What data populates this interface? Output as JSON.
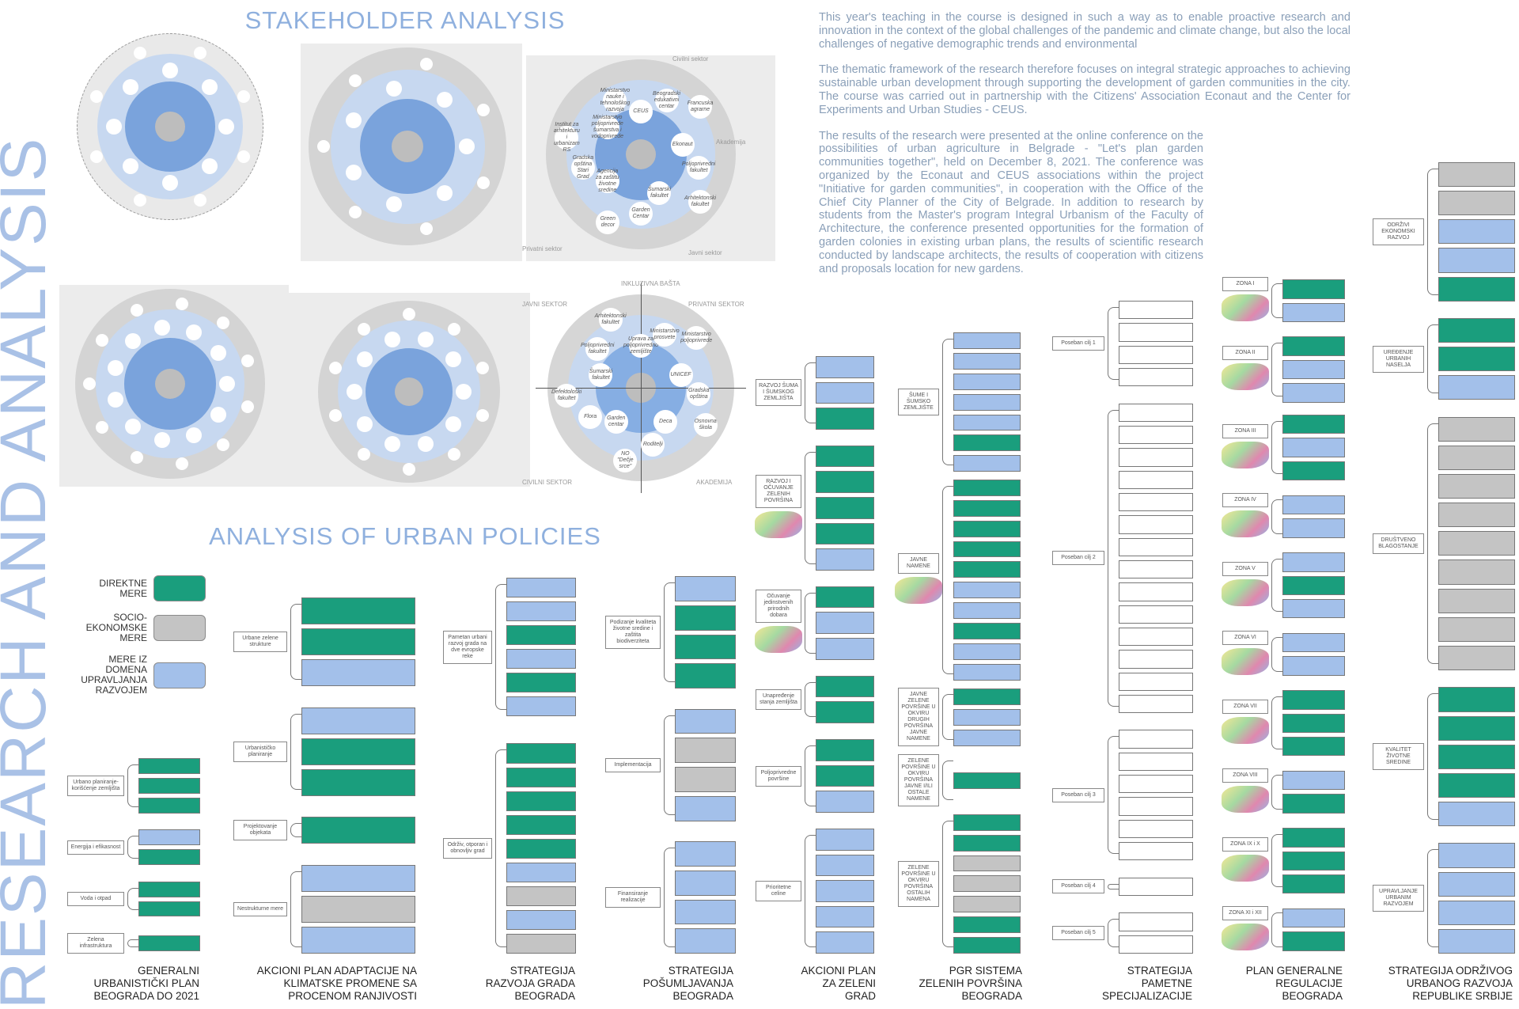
{
  "titles": {
    "stakeholder": "STAKEHOLDER ANALYSIS",
    "policies": "ANALYSIS OF URBAN POLICIES",
    "vertical": "RESEARCH AND ANALYSIS"
  },
  "intro": [
    "This year's teaching in the course is designed in such a way as to enable proactive research and innovation in the context of the global challenges of the pandemic and climate change, but also the local challenges of negative demographic trends and environmental",
    "The thematic framework of the research therefore focuses on integral strategic approaches to achieving sustainable urban development through supporting the development of garden communities in the city. The course was carried out in partnership with the Citizens' Association Econaut and the Center for Experiments and Urban Studies - CEUS.",
    "The results of the research were presented at the online conference on the possibilities of urban agriculture in Belgrade - \"Let's plan garden communities together\", held on December 8, 2021. The conference was organized by the Econaut and CEUS associations within the project \"Initiative for garden communities\", in cooperation with the Office of the Chief City Planner of the City of Belgrade. In addition to research by students from the Master's program Integral Urbanism of the Faculty of Architecture, the conference presented opportunities for the formation of garden colonies in existing urban plans, the results of scientific research conducted by landscape architects, the results of cooperation with citizens and proposals location for new gardens."
  ],
  "stakeholder_3": {
    "sectors": [
      "Civilni sektor",
      "Akademija",
      "Javni sektor",
      "Privatni sektor"
    ],
    "actors": [
      "CEUS",
      "Beogradski edukativni centar",
      "Francuska agrarne",
      "Ekonaut",
      "Poljoprivredni fakultet",
      "Arhitektonski fakultet",
      "Šumarski fakultet",
      "Garden Centar",
      "Green decor",
      "Agencija za zaštitu životne sredine",
      "Gradska opština Stari Grad",
      "Institut za arhitekturu i urbanizam RS",
      "Ministarstvo poljoprivrede šumarstva i vodoprivrede",
      "Ministarstvo nauke i tehnološkog razvoja"
    ]
  },
  "stakeholder_6": {
    "title": "INKLUZIVNA BAŠTA",
    "sectors": [
      "JAVNI SEKTOR",
      "PRIVATNI SEKTOR",
      "CIVILNI SEKTOR",
      "AKADEMIJA"
    ],
    "actors": [
      "Uprava za poljoprivredno zemljište",
      "Ministarstvo prosvete",
      "Ministarstvo poljoprivrede",
      "UNICEF",
      "Gradska opština",
      "Osnovna škola",
      "Deca",
      "Roditelji",
      "NO \"Dečje srce\"",
      "Garden centar",
      "Flora",
      "Defektološki fakultet",
      "Šumarski fakultet",
      "Poljoprivredni fakultet",
      "Arhitektonski fakultet"
    ]
  },
  "legend": [
    {
      "label": "DIREKTNE MERE",
      "code": "g",
      "color": "#1a9e7d"
    },
    {
      "label": "SOCIO-EKONOMSKE MERE",
      "code": "s",
      "color": "#c4c4c4"
    },
    {
      "label": "MERE IZ DOMENA UPRAVLJANJA RAZVOJEM",
      "code": "b",
      "color": "#a3c0ea"
    }
  ],
  "policies": [
    {
      "name": "GENERALNI\nURBANISTIČKI PLAN\nBEOGRADA DO 2021",
      "groups": [
        {
          "node": "Urbano planiranje-korišćenje zemljišta",
          "boxes": "ggg"
        },
        {
          "node": "Energija i efikasnost",
          "boxes": "bg"
        },
        {
          "node": "Voda i otpad",
          "boxes": "gg"
        },
        {
          "node": "Zelena infrastruktura",
          "boxes": "g"
        }
      ]
    },
    {
      "name": "AKCIONI PLAN ADAPTACIJE NA\nKLIMATSKE PROMENE SA\nPROCENOM RANJIVOSTI",
      "groups": [
        {
          "node": "Urbane zelene strukture",
          "boxes": "ggb"
        },
        {
          "node": "Urbanističko planiranje",
          "boxes": "bgg"
        },
        {
          "node": "Projektovanje objekata",
          "boxes": "g"
        },
        {
          "node": "Nestrukturne mere",
          "boxes": "bsb"
        }
      ]
    },
    {
      "name": "STRATEGIJA\nRAZVOJA GRADA\nBEOGRADA",
      "groups": [
        {
          "node": "Pametan urbani razvoj grada na dve evropske reke",
          "boxes": "bbgbgb"
        },
        {
          "node": "Održiv, otporan i obnovljiv grad",
          "boxes": "gggggbsbs"
        }
      ]
    },
    {
      "name": "STRATEGIJA\nPOŠUMLJAVANJA\nBEOGRADA",
      "groups": [
        {
          "node": "Podizanje kvaliteta životne sredine i zaštita biodiverziteta",
          "boxes": "bggg"
        },
        {
          "node": "Implementacija",
          "boxes": "bssb"
        },
        {
          "node": "Finansiranje realizacije",
          "boxes": "bbbb"
        }
      ]
    },
    {
      "name": "AKCIONI PLAN\nZA ZELENI\nGRAD",
      "groups": [
        {
          "node": "RAZVOJ ŠUMA I ŠUMSKOG ZEMLJIŠTA",
          "boxes": "bbg"
        },
        {
          "node": "RAZVOJ I OČUVANJE ZELENIH POVRŠINA",
          "boxes": "ggggb"
        },
        {
          "node": "Očuvanje jedinstvenih prirodnih dobara",
          "boxes": "gbb"
        },
        {
          "node": "Unapređenje stanja zemljišta",
          "boxes": "gg"
        },
        {
          "node": "Poljoprivredne površine",
          "boxes": "ggb"
        },
        {
          "node": "Prioritetne celine",
          "boxes": "bbbbb"
        }
      ]
    },
    {
      "name": "PGR SISTEMA\nZELENIH POVRŠINA\nBEOGRADA",
      "groups": [
        {
          "node": "ŠUME I ŠUMSKO ZEMLJIŠTE",
          "boxes": "bbbbbgb"
        },
        {
          "node": "JAVNE NAMENE",
          "boxes": "gggggbbgbb"
        },
        {
          "node": "JAVNE ZELENE POVRŠINE U OKVIRU DRUGIH POVRŠINA JAVNE NAMENE",
          "boxes": "gbb"
        },
        {
          "node": "ZELENE POVRŠINE U OKVIRU POVRŠINA JAVNE I/ILI OSTALE NAMENE",
          "boxes": "g"
        },
        {
          "node": "ZELENE POVRŠINE U OKVIRU POVRŠINA OSTALIH NAMENA",
          "boxes": "ggsssgg"
        }
      ]
    },
    {
      "name": "STRATEGIJA\nPAMETNE\nSPECIJALIZACIJE",
      "groups": [
        {
          "node": "Poseban cilj 1",
          "boxes": "wwww"
        },
        {
          "node": "Poseban cilj 2",
          "boxes": "wwwwwwwwwwwwww"
        },
        {
          "node": "Poseban cilj 3",
          "boxes": "wwwwww"
        },
        {
          "node": "Poseban cilj 4",
          "boxes": "w"
        },
        {
          "node": "Poseban cilj 5",
          "boxes": "ww"
        }
      ]
    },
    {
      "name": "PLAN GENERALNE\nREGULACIJE\nBEOGRADA",
      "groups": [
        {
          "node": "ZONA I",
          "boxes": "gb"
        },
        {
          "node": "ZONA II",
          "boxes": "gbb"
        },
        {
          "node": "ZONA III",
          "boxes": "gbg"
        },
        {
          "node": "ZONA IV",
          "boxes": "bb"
        },
        {
          "node": "ZONA V",
          "boxes": "bgb"
        },
        {
          "node": "ZONA VI",
          "boxes": "bb"
        },
        {
          "node": "ZONA VII",
          "boxes": "ggg"
        },
        {
          "node": "ZONA VIII",
          "boxes": "bg"
        },
        {
          "node": "ZONA IX i X",
          "boxes": "ggg"
        },
        {
          "node": "ZONA XI i XII",
          "boxes": "bg"
        }
      ]
    },
    {
      "name": "STRATEGIJA ODRŽIVOG\nURBANOG RAZVOJA\nREPUBLIKE SRBIJE",
      "groups": [
        {
          "node": "ODRŽIVI EKONOMSKI RAZVOJ",
          "boxes": "ssbbg"
        },
        {
          "node": "UREĐENJE URBANIH NASELJA",
          "boxes": "ggb"
        },
        {
          "node": "DRUŠTVENO BLAGOSTANJE",
          "boxes": "sssssssss"
        },
        {
          "node": "KVALITET ŽIVOTNE SREDINE",
          "boxes": "ggggb"
        },
        {
          "node": "UPRAVLJANJE URBANIM RAZVOJEM",
          "boxes": "bbbb"
        }
      ]
    }
  ]
}
